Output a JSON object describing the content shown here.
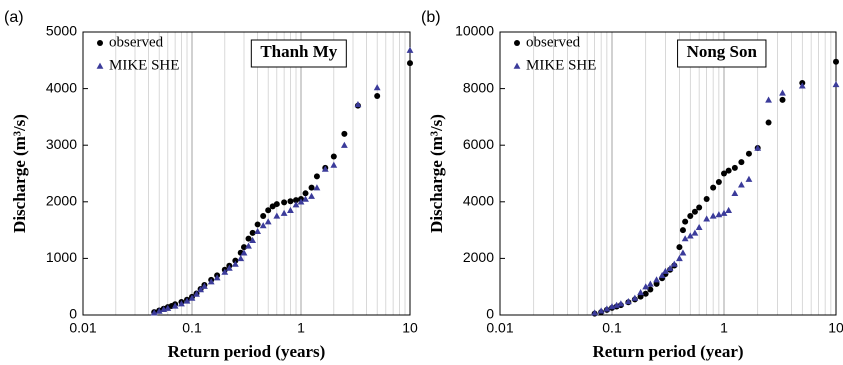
{
  "chart_data": [
    {
      "type": "scatter",
      "panel_label": "(a)",
      "title": "Thanh My",
      "x_label": "Return period (years)",
      "y_label": "Discharge (m³/s)",
      "xscale": "log",
      "xlim": [
        0.01,
        10
      ],
      "xticks": [
        0.01,
        0.1,
        1,
        10
      ],
      "ylim": [
        0,
        5000
      ],
      "yticks": [
        0,
        1000,
        2000,
        3000,
        4000,
        5000
      ],
      "grid": "x-minor",
      "legend": "upper left",
      "series": [
        {
          "name": "observed",
          "color": "#000000",
          "marker": "circle",
          "x": [
            0.045,
            0.05,
            0.055,
            0.06,
            0.065,
            0.07,
            0.08,
            0.09,
            0.1,
            0.11,
            0.12,
            0.13,
            0.15,
            0.17,
            0.2,
            0.22,
            0.25,
            0.28,
            0.3,
            0.33,
            0.36,
            0.4,
            0.45,
            0.5,
            0.55,
            0.6,
            0.7,
            0.8,
            0.9,
            1.0,
            1.1,
            1.25,
            1.4,
            1.67,
            2.0,
            2.5,
            3.33,
            5,
            10
          ],
          "values": [
            50,
            80,
            110,
            140,
            160,
            190,
            230,
            270,
            320,
            380,
            460,
            530,
            620,
            700,
            800,
            870,
            960,
            1100,
            1200,
            1350,
            1450,
            1600,
            1750,
            1850,
            1920,
            1960,
            1990,
            2010,
            2030,
            2050,
            2150,
            2250,
            2450,
            2600,
            2800,
            3200,
            3700,
            3870,
            4450
          ]
        },
        {
          "name": "MIKE SHE",
          "color": "#3b3b9a",
          "marker": "triangle",
          "x": [
            0.045,
            0.05,
            0.055,
            0.06,
            0.07,
            0.08,
            0.09,
            0.1,
            0.11,
            0.12,
            0.13,
            0.15,
            0.17,
            0.2,
            0.22,
            0.25,
            0.28,
            0.3,
            0.33,
            0.36,
            0.4,
            0.45,
            0.5,
            0.6,
            0.7,
            0.8,
            0.9,
            1.0,
            1.1,
            1.25,
            1.4,
            1.67,
            2.0,
            2.5,
            3.33,
            5,
            10
          ],
          "values": [
            40,
            70,
            100,
            120,
            160,
            200,
            250,
            300,
            370,
            450,
            510,
            590,
            660,
            760,
            830,
            900,
            1000,
            1100,
            1220,
            1320,
            1480,
            1580,
            1650,
            1750,
            1800,
            1850,
            1950,
            2000,
            2050,
            2100,
            2250,
            2580,
            2650,
            3000,
            3720,
            4020,
            4680
          ]
        }
      ]
    },
    {
      "type": "scatter",
      "panel_label": "(b)",
      "title": "Nong Son",
      "x_label": "Return period (year)",
      "y_label": "Discharge (m³/s)",
      "xscale": "log",
      "xlim": [
        0.01,
        10
      ],
      "xticks": [
        0.01,
        0.1,
        1,
        10
      ],
      "ylim": [
        0,
        10000
      ],
      "yticks": [
        0,
        2000,
        4000,
        6000,
        8000,
        10000
      ],
      "grid": "x-minor",
      "legend": "upper left",
      "series": [
        {
          "name": "observed",
          "color": "#000000",
          "marker": "circle",
          "x": [
            0.07,
            0.08,
            0.09,
            0.1,
            0.11,
            0.12,
            0.14,
            0.16,
            0.18,
            0.2,
            0.22,
            0.25,
            0.28,
            0.3,
            0.33,
            0.36,
            0.4,
            0.43,
            0.45,
            0.5,
            0.55,
            0.6,
            0.7,
            0.8,
            0.9,
            1.0,
            1.1,
            1.25,
            1.43,
            1.67,
            2.0,
            2.5,
            3.33,
            5,
            10
          ],
          "values": [
            50,
            100,
            180,
            250,
            300,
            350,
            450,
            550,
            650,
            750,
            900,
            1100,
            1300,
            1450,
            1600,
            1750,
            2400,
            3000,
            3300,
            3500,
            3650,
            3800,
            4100,
            4500,
            4700,
            5000,
            5100,
            5200,
            5400,
            5700,
            5900,
            6800,
            7600,
            8200,
            8950
          ]
        },
        {
          "name": "MIKE SHE",
          "color": "#3b3b9a",
          "marker": "triangle",
          "x": [
            0.07,
            0.08,
            0.09,
            0.1,
            0.11,
            0.12,
            0.14,
            0.16,
            0.18,
            0.2,
            0.22,
            0.25,
            0.28,
            0.3,
            0.33,
            0.36,
            0.4,
            0.43,
            0.45,
            0.5,
            0.55,
            0.6,
            0.7,
            0.8,
            0.9,
            1.0,
            1.1,
            1.25,
            1.43,
            1.67,
            2.0,
            2.5,
            3.33,
            5,
            10
          ],
          "values": [
            80,
            150,
            220,
            300,
            350,
            400,
            480,
            600,
            800,
            1000,
            1100,
            1250,
            1400,
            1550,
            1650,
            1800,
            2000,
            2200,
            2700,
            2800,
            2900,
            3100,
            3400,
            3500,
            3550,
            3600,
            3700,
            4300,
            4600,
            4800,
            5900,
            7600,
            7850,
            8100,
            8150
          ]
        }
      ]
    }
  ]
}
